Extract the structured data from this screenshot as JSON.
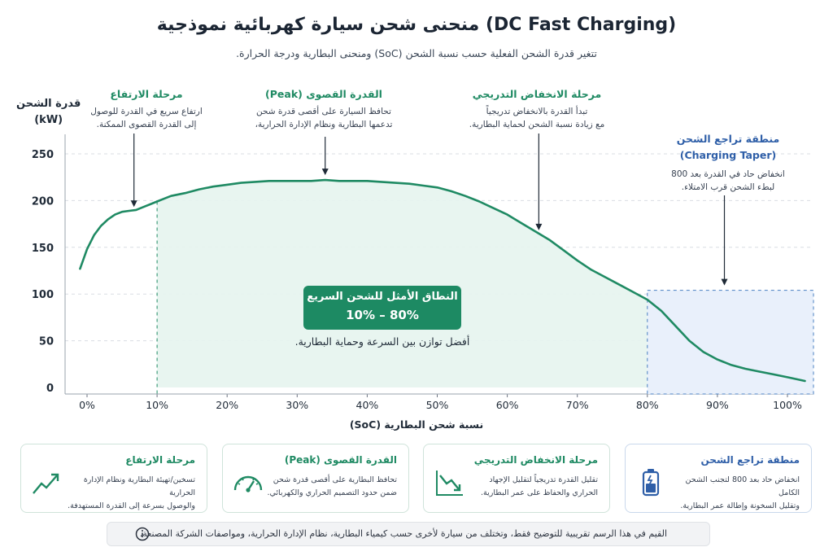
{
  "header": {
    "title": "منحنى شحن سيارة كهربائية نموذجية (DC Fast Charging)",
    "subtitle": "تتغير قدرة الشحن الفعلية حسب نسبة الشحن (SoC) ومنحنى البطارية ودرجة الحرارة."
  },
  "axes": {
    "y_unit_line1": "قدرة الشحن",
    "y_unit_line2": "(kW)",
    "x_label": "نسبة شحن البطارية (SoC)"
  },
  "annotations": {
    "rise": {
      "title": "مرحلة الارتفاع",
      "line1": "ارتفاع سريع في القدرة للوصول",
      "line2": "إلى القدرة القصوى الممكنة."
    },
    "peak": {
      "title": "القدرة القصوى (Peak)",
      "line1": "تحافظ السيارة على أقصى قدرة شحن",
      "line2": "تدعمها البطارية ونظام الإدارة الحرارية،"
    },
    "decline": {
      "title": "مرحلة الانخفاض التدريجي",
      "line1": "تبدأ القدرة بالانخفاض تدريجياً",
      "line2": "مع زيادة نسبة الشحن لحماية البطارية."
    },
    "taper": {
      "title_line1": "منطقة تراجع الشحن",
      "title_line2": "(Charging Taper)",
      "line1": "انخفاض حاد في القدرة بعد 800",
      "line2": "لبطء الشحن قرب الامتلاء."
    }
  },
  "optimal": {
    "title": "النطاق الأمثل للشحن السريع",
    "range": "10% – 80%",
    "note": "أفضل توازن بين السرعة وحماية البطارية."
  },
  "cards": [
    {
      "title": "منطقة تراجع الشحن",
      "line1": "انخفاض حاد بعد 800 لتجنب الشحن الكامل",
      "line2": "وتقليل السخونة وإطالة عمر البطارية.",
      "icon": "battery-icon",
      "color": "#2f5fa8"
    },
    {
      "title": "مرحلة الانخفاض التدريجي",
      "line1": "تقليل القدرة تدريجياً لتقليل الإجهاد",
      "line2": "الحراري والحفاظ على عمر البطارية.",
      "icon": "trend-down-icon",
      "color": "#1f8a63"
    },
    {
      "title": "القدرة القصوى (Peak)",
      "line1": "تحافظ البطارية على أقصى قدرة شحن",
      "line2": "ضمن حدود التصميم الحراري والكهربائي.",
      "icon": "gauge-icon",
      "color": "#1f8a63"
    },
    {
      "title": "مرحلة الارتفاع",
      "line1": "تسخين/تهيئة البطارية ونظام الإدارة الحرارية",
      "line2": "والوصول بسرعة إلى القدرة المستهدفة.",
      "icon": "trend-up-icon",
      "color": "#1f8a63"
    }
  ],
  "footer_note": "القيم في هذا الرسم تقريبية للتوضيح فقط، وتختلف من سيارة لأخرى حسب كيمياء البطارية، نظام الإدارة الحرارية، ومواصفات الشركة المصنعة.",
  "colors": {
    "curve": "#1f8a63",
    "optimal_fill": "#e6f4ee",
    "taper_fill": "#e9f0fb",
    "taper_border": "#4a7fc1",
    "grid": "#d9dde3"
  },
  "chart_data": {
    "type": "area",
    "title": "منحنى شحن سيارة كهربائية نموذجية (DC Fast Charging)",
    "xlabel": "نسبة شحن البطارية (SoC)",
    "ylabel": "قدرة الشحن (kW)",
    "x_tick_labels": [
      "0%",
      "10%",
      "20%",
      "30%",
      "40%",
      "50%",
      "60%",
      "70%",
      "80%",
      "90%",
      "100%"
    ],
    "y_tick_labels": [
      "0",
      "50",
      "100",
      "150",
      "200",
      "250"
    ],
    "xlim": [
      0,
      100
    ],
    "ylim": [
      0,
      250
    ],
    "grid": true,
    "optimal_range": [
      10,
      80
    ],
    "taper_start": 80,
    "series": [
      {
        "x": [
          -1,
          0,
          1,
          2,
          3,
          4,
          5,
          6,
          7,
          8,
          9,
          10,
          11,
          12,
          14,
          16,
          18,
          20,
          22,
          24,
          26,
          28,
          30,
          32,
          34,
          36,
          38,
          40,
          42,
          44,
          46,
          48,
          50,
          52,
          54,
          56,
          58,
          60,
          62,
          64,
          66,
          68,
          70,
          72,
          74,
          76,
          78,
          80,
          82,
          84,
          86,
          88,
          90,
          92,
          94,
          96,
          98,
          100,
          102.5
        ],
        "y": [
          127,
          148,
          163,
          173,
          180,
          185,
          188,
          189,
          190,
          193,
          196,
          199,
          202,
          205,
          208,
          212,
          215,
          217,
          219,
          220,
          221,
          221,
          221,
          221,
          222,
          221,
          221,
          221,
          220,
          219,
          218,
          216,
          214,
          210,
          205,
          199,
          192,
          185,
          176,
          167,
          158,
          147,
          136,
          126,
          118,
          110,
          102,
          94,
          82,
          66,
          50,
          38,
          30,
          24,
          20,
          17,
          14,
          11,
          7
        ]
      }
    ]
  }
}
